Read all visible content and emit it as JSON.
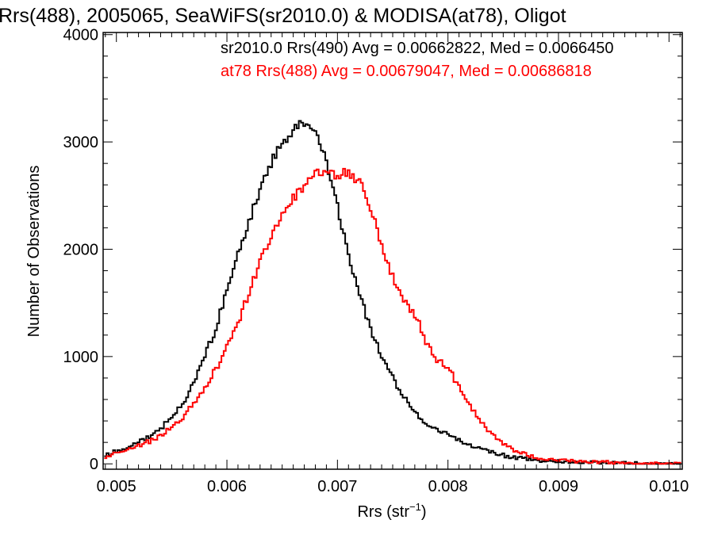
{
  "chart_data": {
    "type": "line",
    "title": "Rrs(488), 2005065, SeaWiFS(sr2010.0) & MODISA(at78), Oligot",
    "xlabel": "Rrs (str",
    "xlabel_sup": "−1",
    "xlabel_close": ")",
    "ylabel": "Number of Observations",
    "xlim": [
      0.00488,
      0.01012
    ],
    "ylim": [
      -50,
      4020
    ],
    "xticks": [
      0.005,
      0.006,
      0.007,
      0.008,
      0.009,
      0.01
    ],
    "xtick_labels": [
      "0.005",
      "0.006",
      "0.007",
      "0.008",
      "0.009",
      "0.010"
    ],
    "yticks": [
      0,
      1000,
      2000,
      3000,
      4000
    ],
    "ytick_labels": [
      "0",
      "1000",
      "2000",
      "3000",
      "4000"
    ],
    "grid": false,
    "step": true,
    "annotations": [
      {
        "text": "sr2010.0 Rrs(490) Avg = 0.00662822, Med = 0.0066450",
        "color": "#000000"
      },
      {
        "text": "at78 Rrs(488) Avg = 0.00679047, Med = 0.00686818",
        "color": "#ff0000"
      }
    ],
    "series": [
      {
        "color": "#000000",
        "x": [
          0.0049,
          0.005,
          0.0051,
          0.0052,
          0.0053,
          0.0054,
          0.0055,
          0.0056,
          0.0057,
          0.0058,
          0.0059,
          0.006,
          0.0061,
          0.0062,
          0.0063,
          0.0064,
          0.0065,
          0.0066,
          0.00665,
          0.0067,
          0.00675,
          0.0068,
          0.00685,
          0.0069,
          0.007,
          0.0071,
          0.0072,
          0.0073,
          0.0074,
          0.0075,
          0.0076,
          0.0077,
          0.0078,
          0.0079,
          0.008,
          0.0081,
          0.0082,
          0.0083,
          0.0084,
          0.0085,
          0.0086,
          0.0087,
          0.0088,
          0.0089,
          0.009,
          0.0091,
          0.0092,
          0.0093,
          0.0094,
          0.0095,
          0.0096,
          0.0097,
          0.0098,
          0.0099,
          0.01,
          0.0101
        ],
        "y": [
          80,
          120,
          160,
          200,
          260,
          330,
          420,
          560,
          760,
          1000,
          1270,
          1600,
          1950,
          2250,
          2560,
          2800,
          2980,
          3100,
          3150,
          3170,
          3180,
          3100,
          2980,
          2820,
          2400,
          1960,
          1580,
          1250,
          1000,
          800,
          620,
          480,
          380,
          320,
          270,
          220,
          180,
          150,
          110,
          80,
          60,
          45,
          35,
          28,
          22,
          18,
          15,
          12,
          10,
          8,
          6,
          5,
          4,
          3,
          3,
          2
        ]
      },
      {
        "color": "#ff0000",
        "x": [
          0.0049,
          0.005,
          0.0051,
          0.0052,
          0.0053,
          0.0054,
          0.0055,
          0.0056,
          0.0057,
          0.0058,
          0.0059,
          0.006,
          0.0061,
          0.0062,
          0.0063,
          0.0064,
          0.0065,
          0.0066,
          0.0067,
          0.0068,
          0.0069,
          0.007,
          0.0071,
          0.0072,
          0.0073,
          0.0074,
          0.0075,
          0.0076,
          0.0077,
          0.0078,
          0.0079,
          0.008,
          0.0081,
          0.0082,
          0.0083,
          0.0084,
          0.0085,
          0.0086,
          0.0087,
          0.0088,
          0.0089,
          0.009,
          0.0091,
          0.0092,
          0.0093,
          0.0094,
          0.0095,
          0.0096,
          0.0097,
          0.0098,
          0.0099,
          0.01,
          0.0101
        ],
        "y": [
          70,
          100,
          130,
          170,
          210,
          260,
          340,
          440,
          560,
          700,
          880,
          1080,
          1320,
          1600,
          1880,
          2120,
          2320,
          2480,
          2600,
          2720,
          2700,
          2680,
          2720,
          2620,
          2380,
          2050,
          1750,
          1520,
          1400,
          1150,
          980,
          900,
          720,
          550,
          400,
          280,
          190,
          130,
          90,
          60,
          45,
          35,
          28,
          22,
          18,
          15,
          12,
          10,
          8,
          6,
          5,
          4,
          3
        ]
      }
    ]
  }
}
